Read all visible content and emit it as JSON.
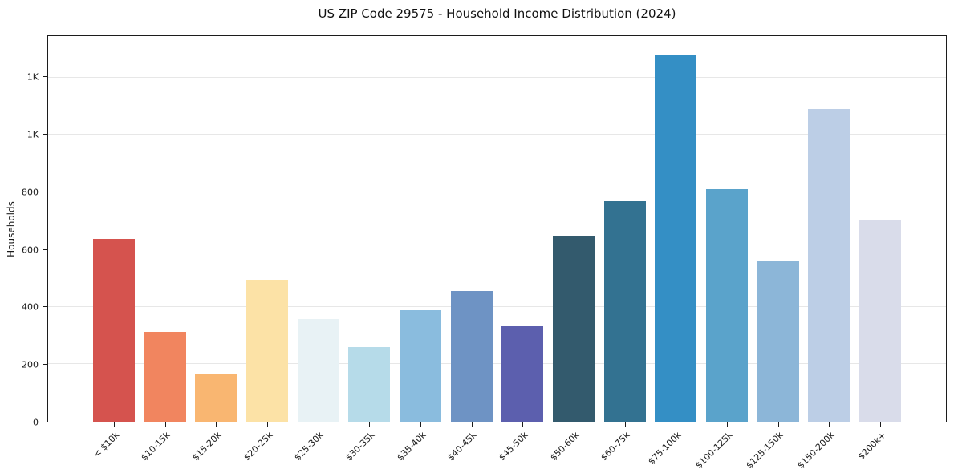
{
  "chart_data": {
    "type": "bar",
    "title": "US ZIP Code 29575 - Household Income Distribution (2024)",
    "ylabel": "Households",
    "xlabel": "",
    "categories": [
      "< $10k",
      "$10-15k",
      "$15-20k",
      "$20-25k",
      "$25-30k",
      "$30-35k",
      "$35-40k",
      "$40-45k",
      "$45-50k",
      "$50-60k",
      "$60-75k",
      "$75-100k",
      "$100-125k",
      "$125-150k",
      "$150-200k",
      "$200k+"
    ],
    "values": [
      637,
      314,
      166,
      494,
      357,
      260,
      388,
      457,
      332,
      650,
      768,
      1278,
      811,
      558,
      1090,
      704
    ],
    "bar_colors": [
      "#d5534e",
      "#f1855f",
      "#f9b671",
      "#fce2a6",
      "#e8f2f5",
      "#b6dbe9",
      "#8abcde",
      "#6e93c4",
      "#5c5fae",
      "#335a6d",
      "#337291",
      "#348fc5",
      "#5aa3cb",
      "#8cb6d8",
      "#bccee6",
      "#d9dcea"
    ],
    "ylim": [
      0,
      1345
    ],
    "yticks": [
      {
        "value": 0,
        "label": "0"
      },
      {
        "value": 200,
        "label": "200"
      },
      {
        "value": 400,
        "label": "400"
      },
      {
        "value": 600,
        "label": "600"
      },
      {
        "value": 800,
        "label": "800"
      },
      {
        "value": 1000,
        "label": "1K"
      },
      {
        "value": 1200,
        "label": "1K"
      }
    ],
    "grid": "horizontal",
    "legend": "none",
    "colors": {
      "background": "#ffffff",
      "spine": "#1c1c1c",
      "gridline": "#e7e7e7",
      "text": "#1a1a1a"
    }
  }
}
